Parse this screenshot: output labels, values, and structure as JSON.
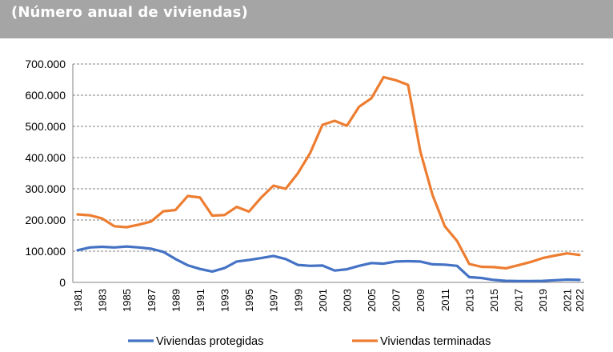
{
  "header": {
    "subtitle": "(Número anual de viviendas)",
    "band_color": "#a5a5a5"
  },
  "chart_data": {
    "type": "line",
    "title": "(Número anual de viviendas)",
    "xlabel": "",
    "ylabel": "",
    "ylim": [
      0,
      700000
    ],
    "yticks": [
      0,
      100000,
      200000,
      300000,
      400000,
      500000,
      600000,
      700000
    ],
    "ytick_labels": [
      "0",
      "100.000",
      "200.000",
      "300.000",
      "400.000",
      "500.000",
      "600.000",
      "700.000"
    ],
    "xtick_labels": [
      "1981",
      "1983",
      "1985",
      "1987",
      "1989",
      "1991",
      "1993",
      "1995",
      "1997",
      "1999",
      "2001",
      "2003",
      "2005",
      "2007",
      "2009",
      "2011",
      "2013",
      "2015",
      "2017",
      "2019",
      "2021",
      "2022"
    ],
    "grid": "horizontal-dashed",
    "legend_position": "bottom",
    "x": [
      1981,
      1982,
      1983,
      1984,
      1985,
      1986,
      1987,
      1988,
      1989,
      1990,
      1991,
      1992,
      1993,
      1994,
      1995,
      1996,
      1997,
      1998,
      1999,
      2000,
      2001,
      2002,
      2003,
      2004,
      2005,
      2006,
      2007,
      2008,
      2009,
      2010,
      2011,
      2012,
      2013,
      2014,
      2015,
      2016,
      2017,
      2018,
      2019,
      2020,
      2021,
      2022
    ],
    "series": [
      {
        "name": "Viviendas protegidas",
        "color": "#4472c4",
        "values": [
          103000,
          112000,
          114000,
          112000,
          115000,
          112000,
          108000,
          98000,
          75000,
          55000,
          43000,
          35000,
          46000,
          67000,
          72000,
          78000,
          85000,
          75000,
          56000,
          53000,
          54000,
          38000,
          42000,
          53000,
          62000,
          60000,
          67000,
          68000,
          67000,
          58000,
          57000,
          53000,
          17000,
          14000,
          8000,
          5000,
          4000,
          4000,
          5000,
          7000,
          9000,
          8000
        ]
      },
      {
        "name": "Viviendas terminadas",
        "color": "#ed7d31",
        "values": [
          218000,
          215000,
          205000,
          180000,
          177000,
          185000,
          195000,
          228000,
          232000,
          277000,
          272000,
          214000,
          216000,
          242000,
          227000,
          272000,
          310000,
          300000,
          350000,
          415000,
          505000,
          518000,
          502000,
          563000,
          590000,
          658000,
          648000,
          633000,
          420000,
          280000,
          180000,
          133000,
          59000,
          50000,
          49000,
          45000,
          55000,
          65000,
          78000,
          86000,
          93000,
          88000
        ]
      }
    ]
  }
}
